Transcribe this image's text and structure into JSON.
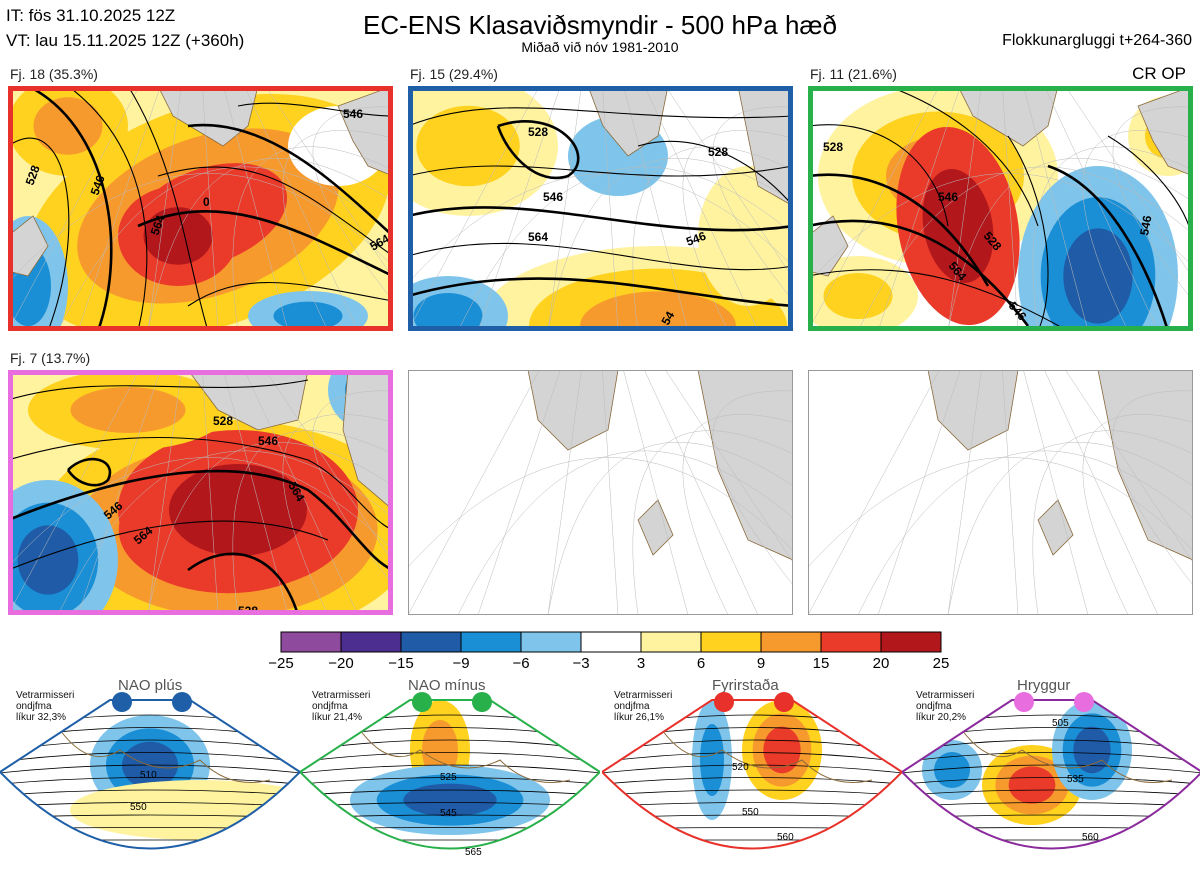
{
  "header": {
    "issue_time": "IT: fös 31.10.2025 12Z",
    "valid_time": "VT: lau 15.11.2025 12Z  (+360h)",
    "title": "EC-ENS Klasaviðsmyndir - 500 hPa hæð",
    "subtitle": "Miðað við nóv 1981-2010",
    "window": "Flokkunargluggi t+264-360",
    "cr_op": "CR OP"
  },
  "chart_data": {
    "type": "heatmap",
    "variable": "500 hPa hæð",
    "clusters": [
      {
        "label": "Fj. 18 (35.3%)",
        "frame_color": "#e8312a",
        "contours": [
          "528",
          "546",
          "564",
          "546",
          "564",
          "0"
        ]
      },
      {
        "label": "Fj. 15 (29.4%)",
        "frame_color": "#1e5fa8",
        "contours": [
          "528",
          "546",
          "564",
          "546",
          "528",
          "54"
        ]
      },
      {
        "label": "Fj. 11 (21.6%)",
        "frame_color": "#28b04a",
        "contours": [
          "528",
          "546",
          "564",
          "528",
          "546",
          "546"
        ]
      },
      {
        "label": "Fj. 7 (13.7%)",
        "frame_color": "#e86ee0",
        "contours": [
          "528",
          "546",
          "564",
          "546",
          "564",
          "528"
        ]
      },
      {
        "label": "",
        "frame_color": "",
        "contours": []
      },
      {
        "label": "",
        "frame_color": "",
        "contours": []
      }
    ],
    "colorbar": {
      "ticks": [
        "−25",
        "−20",
        "−15",
        "−9",
        "−6",
        "−3",
        "3",
        "6",
        "9",
        "15",
        "20",
        "25"
      ],
      "colors": [
        "#8e4a9c",
        "#4b2e8f",
        "#1f5ba6",
        "#1a8fd6",
        "#7fc4ea",
        "#ffffff",
        "#fff3a0",
        "#ffd21f",
        "#f79a2e",
        "#ea3a2a",
        "#b2171c"
      ]
    },
    "regimes": [
      {
        "name": "NAO plús",
        "note": [
          "Vetrarmisseri",
          "ondjfma",
          "líkur 32,3%"
        ],
        "dot_color": "#1e5fa8",
        "frame_color": "#1e5fa8",
        "contours": [
          "510",
          "550"
        ]
      },
      {
        "name": "NAO mínus",
        "note": [
          "Vetrarmisseri",
          "ondjfma",
          "líkur 21,4%"
        ],
        "dot_color": "#28b04a",
        "frame_color": "#28b04a",
        "contours": [
          "525",
          "545",
          "565"
        ]
      },
      {
        "name": "Fyrirstaða",
        "note": [
          "Vetrarmisseri",
          "ondjfma",
          "líkur 26,1%"
        ],
        "dot_color": "#e8312a",
        "frame_color": "#e8312a",
        "contours": [
          "520",
          "550",
          "560"
        ]
      },
      {
        "name": "Hryggur",
        "note": [
          "Vetrarmisseri",
          "ondjfma",
          "líkur 20,2%"
        ],
        "dot_color": "#e86ee0",
        "frame_color": "#8a2a9c",
        "contours": [
          "505",
          "535",
          "560"
        ]
      }
    ]
  }
}
